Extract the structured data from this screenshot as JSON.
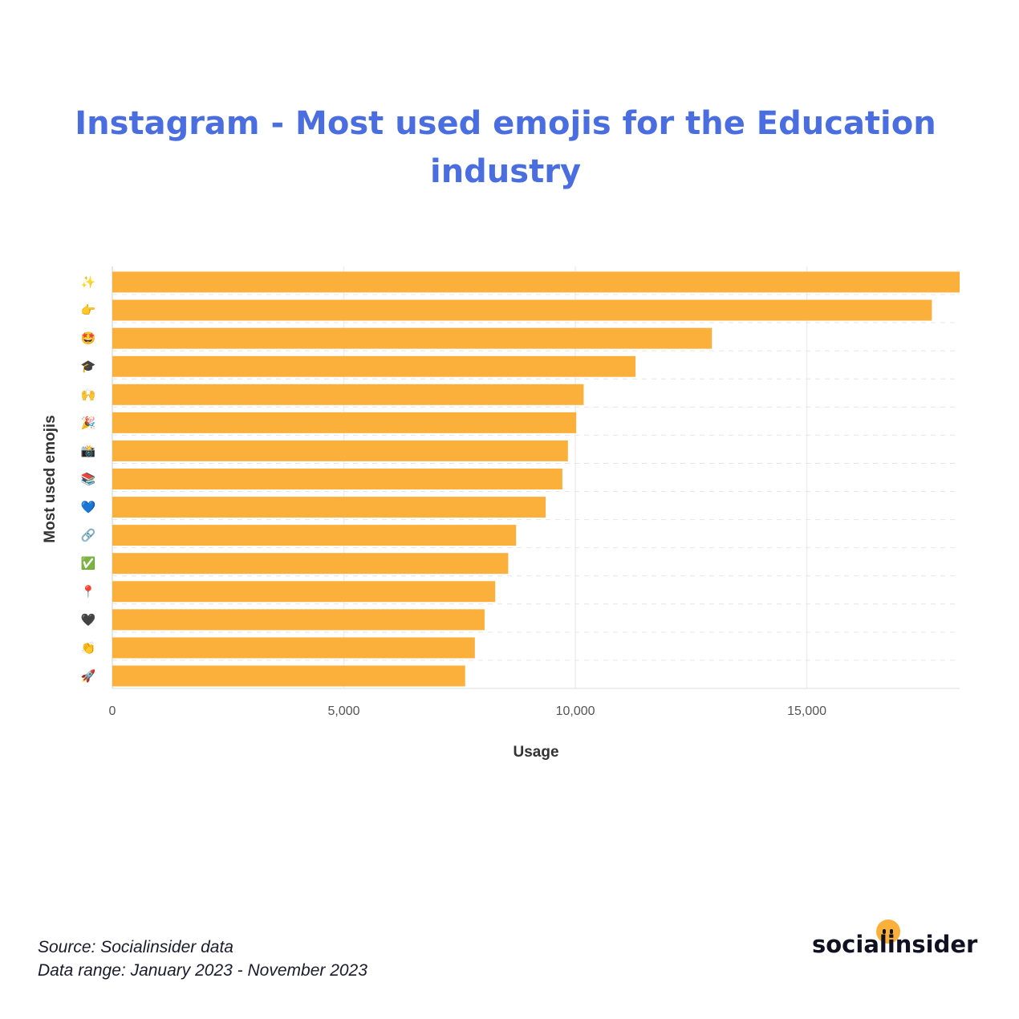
{
  "title": "Instagram - Most used emojis for the Education industry",
  "footer": {
    "source": "Source: Socialinsider data",
    "range": "Data range: January 2023 - November 2023"
  },
  "logo": {
    "text": "socialinsider"
  },
  "colors": {
    "title": "#4a6ee0",
    "bar": "#fbb03b",
    "logo_dot": "#fbb03b"
  },
  "chart_data": {
    "type": "bar",
    "orientation": "horizontal",
    "categories": [
      "✨",
      "👉",
      "🤩",
      "🎓",
      "🙌",
      "🎉",
      "📸",
      "📚",
      "💙",
      "🔗",
      "✅",
      "📍",
      "🖤",
      "👏",
      "🚀"
    ],
    "values": [
      18300,
      17700,
      12950,
      11300,
      10180,
      10020,
      9840,
      9720,
      9360,
      8720,
      8550,
      8270,
      8040,
      7830,
      7620
    ],
    "xlabel": "Usage",
    "ylabel": "Most used emojis",
    "xlim": [
      0,
      18300
    ],
    "xticks": [
      0,
      5000,
      10000,
      15000
    ],
    "xtick_labels": [
      "0",
      "5,000",
      "10,000",
      "15,000"
    ],
    "grid": true
  }
}
